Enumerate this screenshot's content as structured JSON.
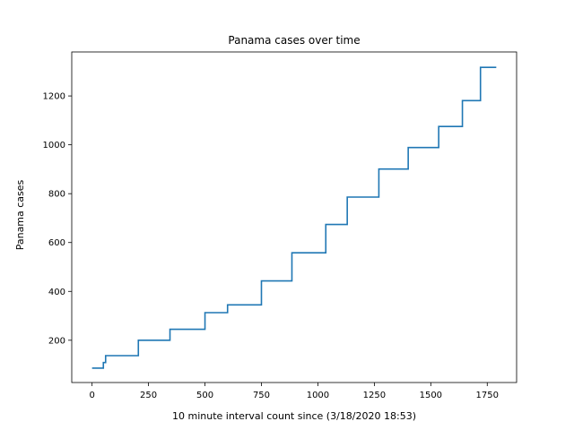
{
  "chart_data": {
    "type": "line",
    "title": "Panama cases over time",
    "xlabel": "10 minute interval count since (3/18/2020 18:53)",
    "ylabel": "Panama cases",
    "xlim": [
      -90,
      1880
    ],
    "ylim": [
      27,
      1380
    ],
    "xticks": [
      0,
      250,
      500,
      750,
      1000,
      1250,
      1500,
      1750
    ],
    "yticks": [
      200,
      400,
      600,
      800,
      1000,
      1200
    ],
    "grid": false,
    "legend": "none",
    "line_color": "#1f77b4",
    "series": [
      {
        "step": "post",
        "x": [
          0,
          50,
          60,
          205,
          345,
          500,
          600,
          750,
          885,
          1035,
          1130,
          1270,
          1400,
          1535,
          1640,
          1720,
          1790
        ],
        "y": [
          86,
          109,
          137,
          200,
          245,
          313,
          345,
          443,
          558,
          674,
          786,
          901,
          989,
          1075,
          1181,
          1317,
          1317
        ]
      }
    ]
  }
}
